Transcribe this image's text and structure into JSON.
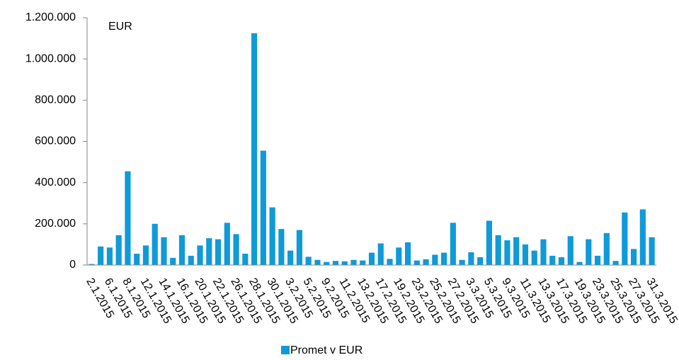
{
  "chart_data": {
    "type": "bar",
    "annotation": "EUR",
    "series": [
      {
        "name": "Promet v EUR",
        "color": "#0f9ad8",
        "values": [
          5000,
          90000,
          85000,
          145000,
          455000,
          55000,
          95000,
          200000,
          135000,
          35000,
          145000,
          45000,
          95000,
          130000,
          125000,
          205000,
          150000,
          55000,
          1125000,
          555000,
          280000,
          175000,
          70000,
          170000,
          40000,
          25000,
          15000,
          20000,
          18000,
          25000,
          22000,
          60000,
          105000,
          30000,
          85000,
          110000,
          22000,
          28000,
          50000,
          60000,
          205000,
          25000,
          62000,
          38000,
          215000,
          145000,
          120000,
          135000,
          100000,
          70000,
          125000,
          45000,
          38000,
          140000,
          15000,
          125000,
          45000,
          155000,
          20000,
          255000,
          78000,
          270000,
          135000
        ]
      }
    ],
    "categories": [
      "2.1.2015",
      null,
      "6.1.2015",
      null,
      "8.1.2015",
      null,
      "12.1.2015",
      null,
      "14.1.2015",
      null,
      "16.1.2015",
      null,
      "20.1.2015",
      null,
      "22.1.2015",
      null,
      "26.1.2015",
      null,
      "28.1.2015",
      null,
      "30.1.2015",
      null,
      "3.2.2015",
      null,
      "5.2.2015",
      null,
      "9.2.2015",
      null,
      "11.2.2015",
      null,
      "13.2.2015",
      null,
      "17.2.2015",
      null,
      "19.2.2015",
      null,
      "23.2.2015",
      null,
      "25.2.2015",
      null,
      "27.2.2015",
      null,
      "3.3.2015",
      null,
      "5.3.2015",
      null,
      "9.3.2015",
      null,
      "11.3.2015",
      null,
      "13.3.2015",
      null,
      "17.3.2015",
      null,
      "19.3.2015",
      null,
      "23.3.2015",
      null,
      "25.3.2015",
      null,
      "27.3.2015",
      null,
      "31.3.2015"
    ],
    "ylim": [
      0,
      1200000
    ],
    "yticks": [
      0,
      {
        "value": 200000,
        "label": "200.000"
      },
      {
        "value": 400000,
        "label": "400.000"
      },
      {
        "value": 600000,
        "label": "600.000"
      },
      {
        "value": 800000,
        "label": "800.000"
      },
      {
        "value": 1000000,
        "label": "1.000.000"
      },
      {
        "value": 1200000,
        "label": "1.200.000"
      }
    ],
    "legend": "bottom"
  }
}
